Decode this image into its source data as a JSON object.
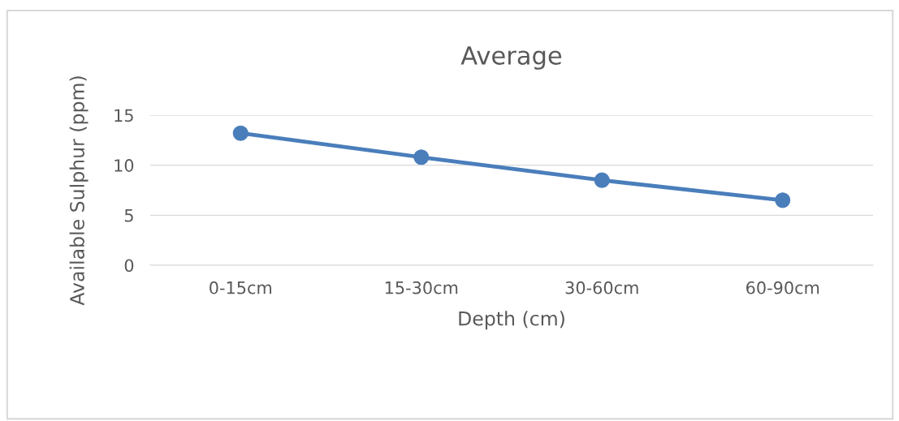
{
  "chart_data": {
    "type": "line",
    "title": "Average",
    "xlabel": "Depth (cm)",
    "ylabel": "Available Sulphur (ppm)",
    "categories": [
      "0-15cm",
      "15-30cm",
      "30-60cm",
      "60-90cm"
    ],
    "series": [
      {
        "color": "#4a7ebb",
        "values": [
          13.2,
          10.8,
          8.5,
          6.5
        ]
      }
    ],
    "ylim": [
      0,
      15
    ],
    "yticks": [
      0,
      5,
      10,
      15
    ],
    "grid": "y",
    "marker": "circle",
    "legend": false
  }
}
